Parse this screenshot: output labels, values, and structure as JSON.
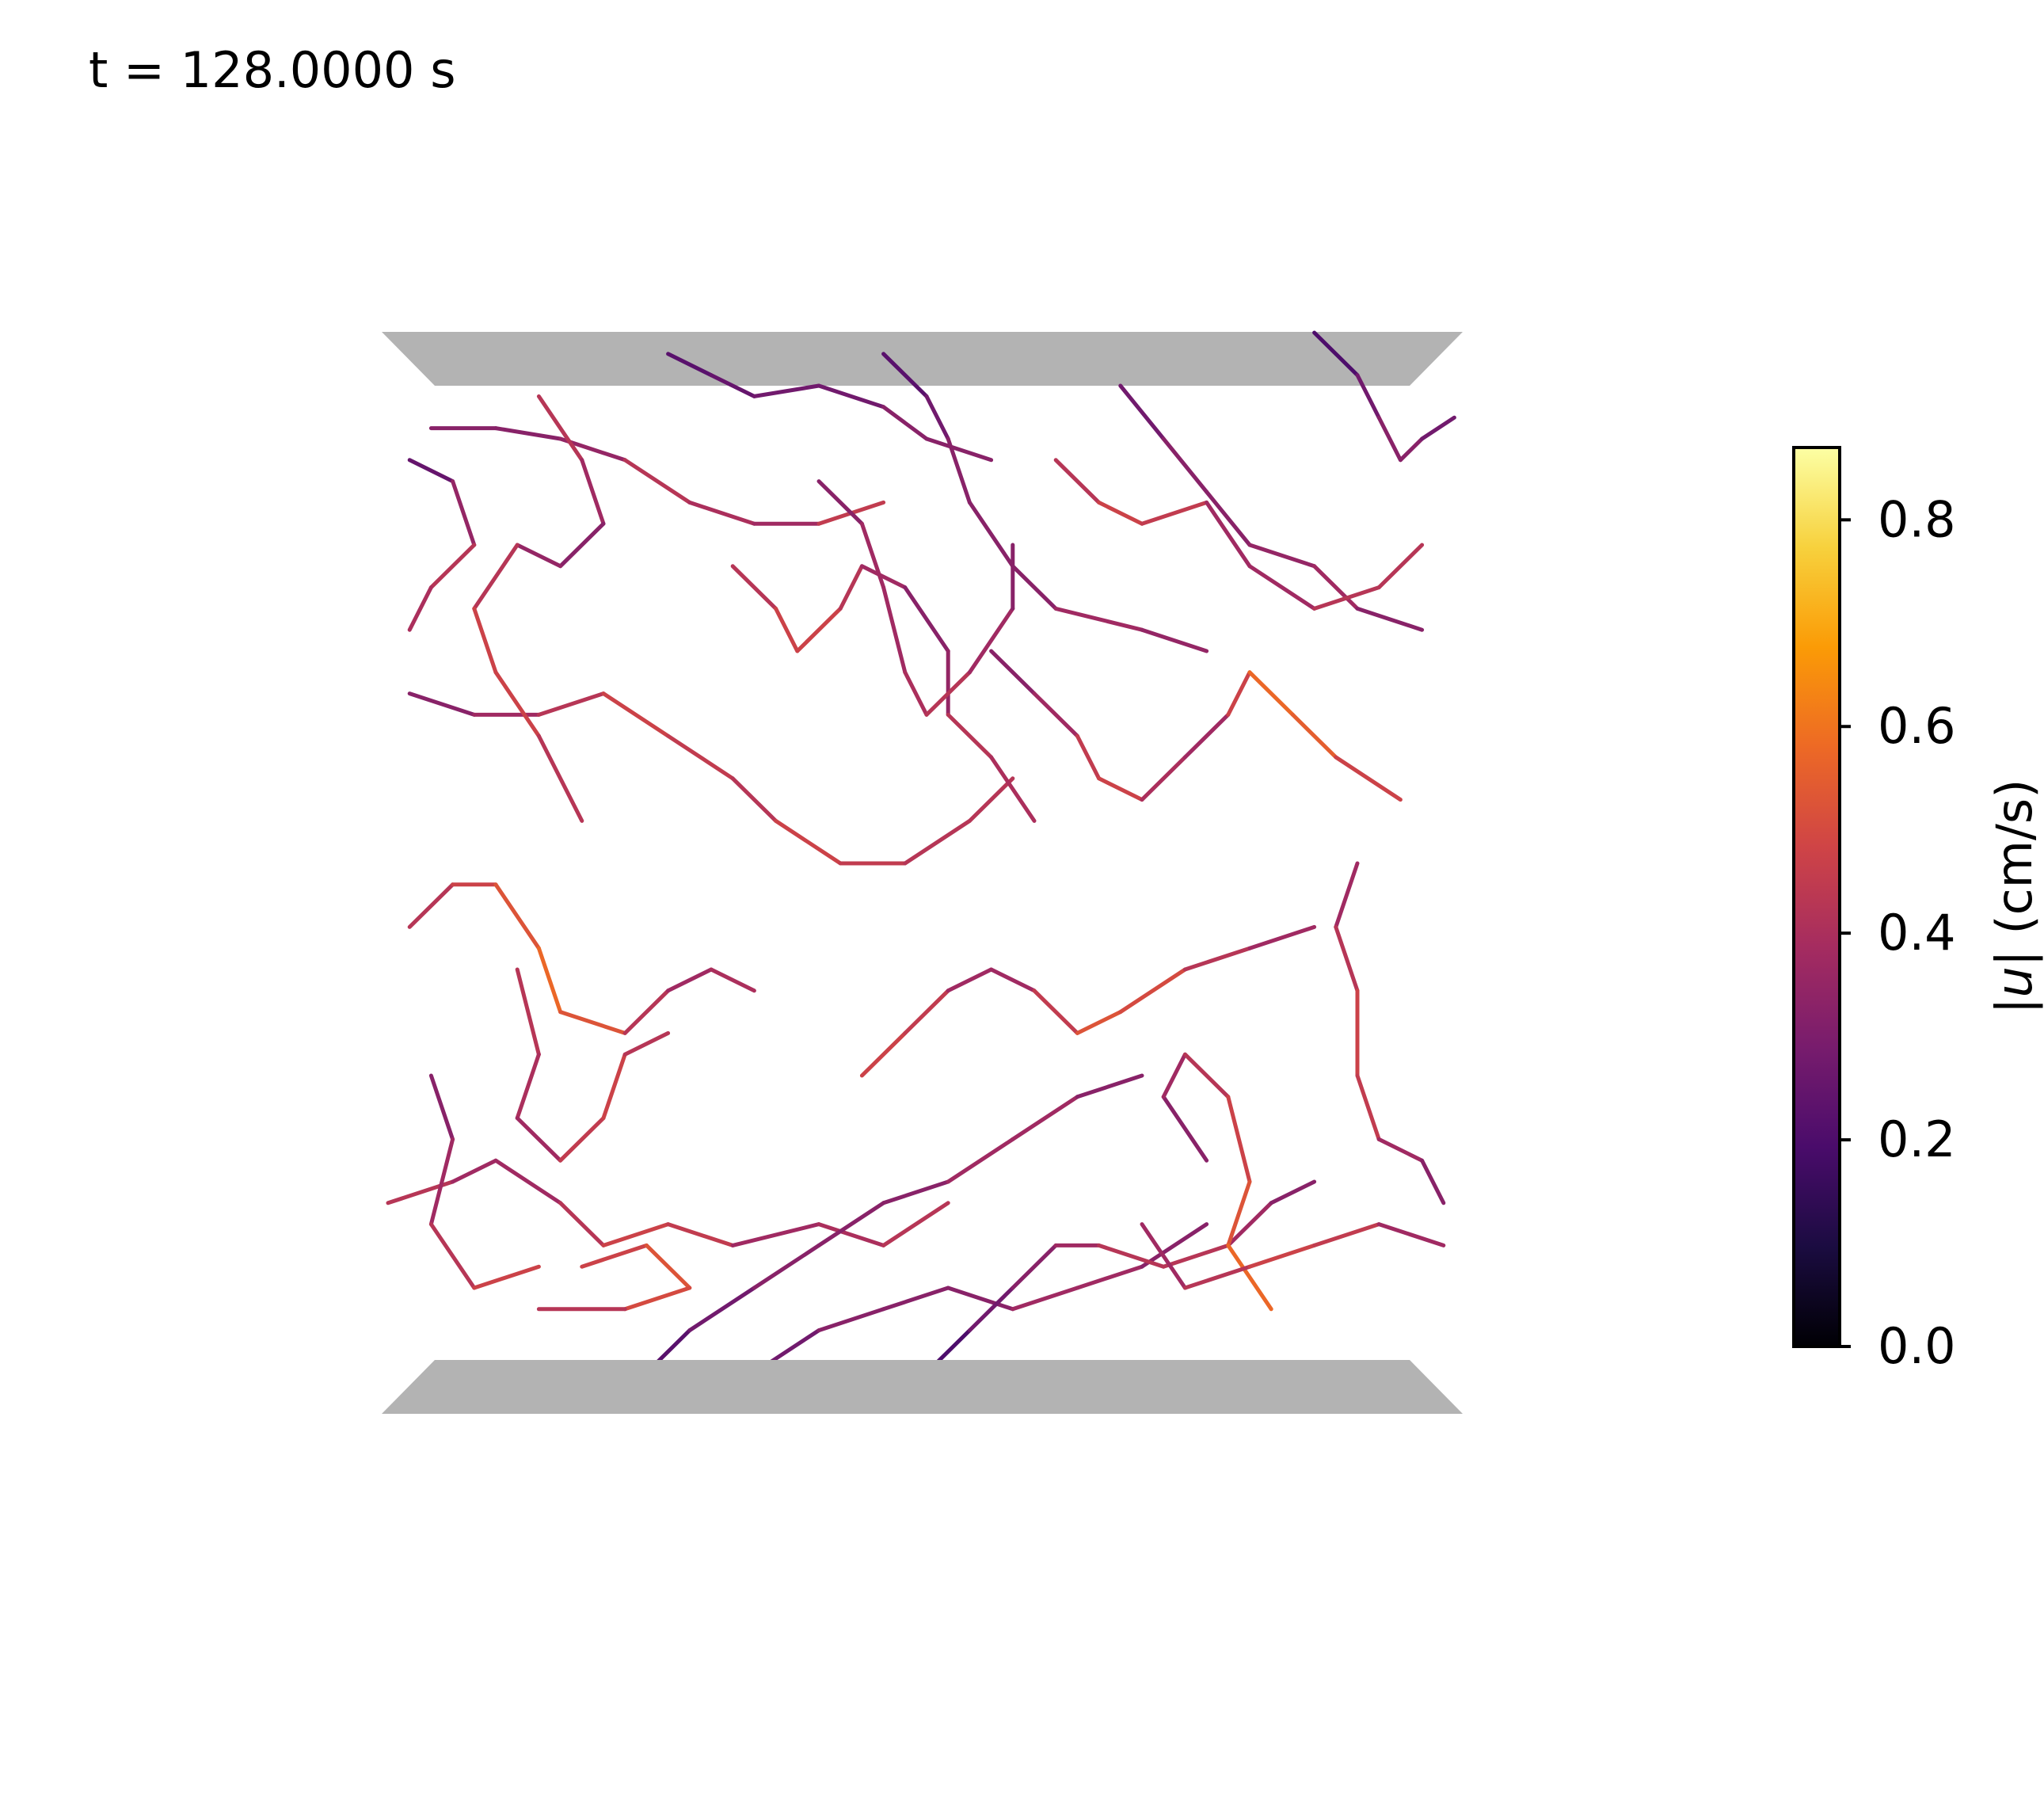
{
  "title": "t = 128.0000 s",
  "colorbar": {
    "label": "|u| (cm/s)",
    "label_var": "u",
    "label_units": "(cm/s)",
    "ticks": [
      "0.0",
      "0.2",
      "0.4",
      "0.6",
      "0.8"
    ],
    "tick_values": [
      0.0,
      0.2,
      0.4,
      0.6,
      0.8
    ],
    "range": [
      0.0,
      0.87
    ],
    "colormap": "inferno",
    "colormap_stops": [
      "#000004",
      "#1b0c41",
      "#4a0c6b",
      "#781c6d",
      "#a52c60",
      "#cf4446",
      "#ed6925",
      "#fb9b06",
      "#f7d13d",
      "#fcffa4"
    ]
  },
  "chart_data": {
    "type": "line",
    "description_kind": "3D vortex filaments colored by velocity magnitude",
    "color_variable": "|u|",
    "color_range": [
      0.0,
      0.87
    ],
    "plates": [
      "top",
      "bottom"
    ],
    "plate_color": "#b3b3b3",
    "filaments": [
      {
        "name": "f1",
        "points": [
          [
            0.26,
            0.02
          ],
          [
            0.3,
            0.04
          ],
          [
            0.34,
            0.06
          ],
          [
            0.4,
            0.05
          ],
          [
            0.46,
            0.07
          ],
          [
            0.5,
            0.1
          ],
          [
            0.56,
            0.12
          ]
        ],
        "speeds": [
          0.25,
          0.2,
          0.3,
          0.25,
          0.3,
          0.35,
          0.3
        ]
      },
      {
        "name": "f2",
        "points": [
          [
            0.04,
            0.09
          ],
          [
            0.1,
            0.09
          ],
          [
            0.16,
            0.1
          ],
          [
            0.22,
            0.12
          ],
          [
            0.28,
            0.16
          ],
          [
            0.34,
            0.18
          ],
          [
            0.4,
            0.18
          ],
          [
            0.46,
            0.16
          ]
        ],
        "speeds": [
          0.3,
          0.35,
          0.3,
          0.4,
          0.45,
          0.35,
          0.4,
          0.5
        ]
      },
      {
        "name": "f3",
        "points": [
          [
            0.46,
            0.02
          ],
          [
            0.5,
            0.06
          ],
          [
            0.52,
            0.1
          ],
          [
            0.54,
            0.16
          ],
          [
            0.58,
            0.22
          ],
          [
            0.62,
            0.26
          ],
          [
            0.7,
            0.28
          ],
          [
            0.76,
            0.3
          ]
        ],
        "speeds": [
          0.2,
          0.25,
          0.3,
          0.35,
          0.3,
          0.35,
          0.4,
          0.3
        ]
      },
      {
        "name": "f4",
        "points": [
          [
            0.68,
            0.05
          ],
          [
            0.72,
            0.1
          ],
          [
            0.76,
            0.15
          ],
          [
            0.8,
            0.2
          ],
          [
            0.86,
            0.22
          ],
          [
            0.9,
            0.26
          ],
          [
            0.96,
            0.28
          ]
        ],
        "speeds": [
          0.25,
          0.3,
          0.35,
          0.3,
          0.4,
          0.35,
          0.3
        ]
      },
      {
        "name": "f5",
        "points": [
          [
            0.86,
            0.0
          ],
          [
            0.9,
            0.04
          ],
          [
            0.92,
            0.08
          ],
          [
            0.94,
            0.12
          ],
          [
            0.96,
            0.1
          ],
          [
            0.99,
            0.08
          ]
        ],
        "speeds": [
          0.15,
          0.25,
          0.3,
          0.35,
          0.3,
          0.25
        ]
      },
      {
        "name": "f6",
        "points": [
          [
            0.02,
            0.34
          ],
          [
            0.08,
            0.36
          ],
          [
            0.14,
            0.36
          ],
          [
            0.2,
            0.34
          ],
          [
            0.26,
            0.38
          ],
          [
            0.32,
            0.42
          ],
          [
            0.36,
            0.46
          ],
          [
            0.42,
            0.5
          ],
          [
            0.48,
            0.5
          ],
          [
            0.54,
            0.46
          ],
          [
            0.58,
            0.42
          ]
        ],
        "speeds": [
          0.3,
          0.35,
          0.4,
          0.45,
          0.5,
          0.4,
          0.45,
          0.5,
          0.4,
          0.45,
          0.4
        ]
      },
      {
        "name": "f7",
        "points": [
          [
            0.56,
            0.3
          ],
          [
            0.6,
            0.34
          ],
          [
            0.64,
            0.38
          ],
          [
            0.66,
            0.42
          ],
          [
            0.7,
            0.44
          ],
          [
            0.74,
            0.4
          ],
          [
            0.78,
            0.36
          ],
          [
            0.8,
            0.32
          ],
          [
            0.84,
            0.36
          ],
          [
            0.88,
            0.4
          ],
          [
            0.94,
            0.44
          ]
        ],
        "speeds": [
          0.3,
          0.35,
          0.4,
          0.5,
          0.45,
          0.35,
          0.4,
          0.55,
          0.6,
          0.5,
          0.45
        ]
      },
      {
        "name": "f8",
        "points": [
          [
            0.02,
            0.56
          ],
          [
            0.06,
            0.52
          ],
          [
            0.1,
            0.52
          ],
          [
            0.14,
            0.58
          ],
          [
            0.16,
            0.64
          ],
          [
            0.22,
            0.66
          ],
          [
            0.26,
            0.62
          ],
          [
            0.3,
            0.6
          ],
          [
            0.34,
            0.62
          ]
        ],
        "speeds": [
          0.4,
          0.45,
          0.5,
          0.55,
          0.6,
          0.45,
          0.4,
          0.35,
          0.45
        ]
      },
      {
        "name": "f9",
        "points": [
          [
            0.44,
            0.7
          ],
          [
            0.48,
            0.66
          ],
          [
            0.52,
            0.62
          ],
          [
            0.56,
            0.6
          ],
          [
            0.6,
            0.62
          ],
          [
            0.64,
            0.66
          ],
          [
            0.68,
            0.64
          ],
          [
            0.74,
            0.6
          ],
          [
            0.8,
            0.58
          ],
          [
            0.86,
            0.56
          ]
        ],
        "speeds": [
          0.45,
          0.5,
          0.4,
          0.35,
          0.4,
          0.5,
          0.55,
          0.45,
          0.4,
          0.35
        ]
      },
      {
        "name": "f10",
        "points": [
          [
            0.0,
            0.82
          ],
          [
            0.06,
            0.8
          ],
          [
            0.1,
            0.78
          ],
          [
            0.16,
            0.82
          ],
          [
            0.2,
            0.86
          ],
          [
            0.26,
            0.84
          ],
          [
            0.32,
            0.86
          ],
          [
            0.4,
            0.84
          ],
          [
            0.46,
            0.86
          ],
          [
            0.52,
            0.82
          ]
        ],
        "speeds": [
          0.45,
          0.4,
          0.35,
          0.4,
          0.45,
          0.5,
          0.4,
          0.35,
          0.45,
          0.4
        ]
      },
      {
        "name": "f11",
        "points": [
          [
            0.24,
            0.98
          ],
          [
            0.28,
            0.94
          ],
          [
            0.34,
            0.9
          ],
          [
            0.4,
            0.86
          ],
          [
            0.46,
            0.82
          ],
          [
            0.52,
            0.8
          ],
          [
            0.58,
            0.76
          ],
          [
            0.64,
            0.72
          ],
          [
            0.7,
            0.7
          ]
        ],
        "speeds": [
          0.2,
          0.25,
          0.3,
          0.35,
          0.3,
          0.35,
          0.4,
          0.35,
          0.3
        ]
      },
      {
        "name": "f12",
        "points": [
          [
            0.34,
            0.98
          ],
          [
            0.4,
            0.94
          ],
          [
            0.46,
            0.92
          ],
          [
            0.52,
            0.9
          ],
          [
            0.58,
            0.92
          ],
          [
            0.64,
            0.9
          ],
          [
            0.7,
            0.88
          ],
          [
            0.76,
            0.84
          ]
        ],
        "speeds": [
          0.25,
          0.3,
          0.35,
          0.3,
          0.35,
          0.4,
          0.35,
          0.3
        ]
      },
      {
        "name": "f13",
        "points": [
          [
            0.5,
            0.98
          ],
          [
            0.54,
            0.94
          ],
          [
            0.58,
            0.9
          ],
          [
            0.62,
            0.86
          ],
          [
            0.66,
            0.86
          ],
          [
            0.72,
            0.88
          ],
          [
            0.78,
            0.86
          ],
          [
            0.82,
            0.82
          ],
          [
            0.86,
            0.8
          ]
        ],
        "speeds": [
          0.15,
          0.25,
          0.3,
          0.35,
          0.4,
          0.45,
          0.4,
          0.35,
          0.3
        ]
      },
      {
        "name": "f14",
        "points": [
          [
            0.76,
            0.78
          ],
          [
            0.72,
            0.72
          ],
          [
            0.74,
            0.68
          ],
          [
            0.78,
            0.72
          ],
          [
            0.8,
            0.8
          ],
          [
            0.78,
            0.86
          ],
          [
            0.82,
            0.92
          ]
        ],
        "speeds": [
          0.3,
          0.35,
          0.4,
          0.45,
          0.5,
          0.55,
          0.6
        ]
      },
      {
        "name": "f15",
        "points": [
          [
            0.9,
            0.5
          ],
          [
            0.88,
            0.56
          ],
          [
            0.9,
            0.62
          ],
          [
            0.9,
            0.7
          ],
          [
            0.92,
            0.76
          ],
          [
            0.96,
            0.78
          ],
          [
            0.98,
            0.82
          ]
        ],
        "speeds": [
          0.35,
          0.4,
          0.45,
          0.5,
          0.4,
          0.35,
          0.3
        ]
      },
      {
        "name": "f16",
        "points": [
          [
            0.32,
            0.22
          ],
          [
            0.36,
            0.26
          ],
          [
            0.38,
            0.3
          ],
          [
            0.42,
            0.26
          ],
          [
            0.44,
            0.22
          ],
          [
            0.48,
            0.24
          ],
          [
            0.52,
            0.3
          ],
          [
            0.52,
            0.36
          ],
          [
            0.56,
            0.4
          ],
          [
            0.6,
            0.46
          ]
        ],
        "speeds": [
          0.4,
          0.45,
          0.5,
          0.45,
          0.4,
          0.35,
          0.3,
          0.4,
          0.45,
          0.35
        ]
      },
      {
        "name": "f17",
        "points": [
          [
            0.12,
            0.6
          ],
          [
            0.14,
            0.68
          ],
          [
            0.12,
            0.74
          ],
          [
            0.16,
            0.78
          ],
          [
            0.2,
            0.74
          ],
          [
            0.22,
            0.68
          ],
          [
            0.26,
            0.66
          ]
        ],
        "speeds": [
          0.4,
          0.45,
          0.35,
          0.4,
          0.5,
          0.45,
          0.4
        ]
      },
      {
        "name": "f18",
        "points": [
          [
            0.14,
            0.06
          ],
          [
            0.18,
            0.12
          ],
          [
            0.2,
            0.18
          ],
          [
            0.16,
            0.22
          ],
          [
            0.12,
            0.2
          ],
          [
            0.08,
            0.26
          ],
          [
            0.1,
            0.32
          ],
          [
            0.14,
            0.38
          ],
          [
            0.18,
            0.46
          ]
        ],
        "speeds": [
          0.45,
          0.4,
          0.35,
          0.3,
          0.4,
          0.45,
          0.5,
          0.45,
          0.4
        ]
      },
      {
        "name": "f19",
        "points": [
          [
            0.4,
            0.14
          ],
          [
            0.44,
            0.18
          ],
          [
            0.46,
            0.24
          ],
          [
            0.48,
            0.32
          ],
          [
            0.5,
            0.36
          ],
          [
            0.54,
            0.32
          ],
          [
            0.58,
            0.26
          ],
          [
            0.58,
            0.2
          ]
        ],
        "speeds": [
          0.3,
          0.35,
          0.4,
          0.35,
          0.45,
          0.4,
          0.35,
          0.3
        ]
      },
      {
        "name": "f20",
        "points": [
          [
            0.62,
            0.12
          ],
          [
            0.66,
            0.16
          ],
          [
            0.7,
            0.18
          ],
          [
            0.76,
            0.16
          ],
          [
            0.8,
            0.22
          ],
          [
            0.86,
            0.26
          ],
          [
            0.92,
            0.24
          ],
          [
            0.96,
            0.2
          ]
        ],
        "speeds": [
          0.4,
          0.45,
          0.5,
          0.4,
          0.35,
          0.4,
          0.45,
          0.4
        ]
      },
      {
        "name": "f21",
        "points": [
          [
            0.02,
            0.12
          ],
          [
            0.06,
            0.14
          ],
          [
            0.08,
            0.2
          ],
          [
            0.04,
            0.24
          ],
          [
            0.02,
            0.28
          ]
        ],
        "speeds": [
          0.2,
          0.3,
          0.4,
          0.45,
          0.35
        ]
      },
      {
        "name": "f22",
        "points": [
          [
            0.04,
            0.7
          ],
          [
            0.06,
            0.76
          ],
          [
            0.04,
            0.84
          ],
          [
            0.08,
            0.9
          ],
          [
            0.14,
            0.88
          ]
        ],
        "speeds": [
          0.3,
          0.35,
          0.4,
          0.45,
          0.5
        ]
      },
      {
        "name": "f23",
        "points": [
          [
            0.18,
            0.88
          ],
          [
            0.24,
            0.86
          ],
          [
            0.28,
            0.9
          ],
          [
            0.22,
            0.92
          ],
          [
            0.14,
            0.92
          ]
        ],
        "speeds": [
          0.45,
          0.5,
          0.55,
          0.45,
          0.4
        ]
      },
      {
        "name": "f24",
        "points": [
          [
            0.7,
            0.84
          ],
          [
            0.74,
            0.9
          ],
          [
            0.8,
            0.88
          ],
          [
            0.86,
            0.86
          ],
          [
            0.92,
            0.84
          ],
          [
            0.98,
            0.86
          ]
        ],
        "speeds": [
          0.35,
          0.4,
          0.45,
          0.5,
          0.4,
          0.35
        ]
      }
    ]
  }
}
